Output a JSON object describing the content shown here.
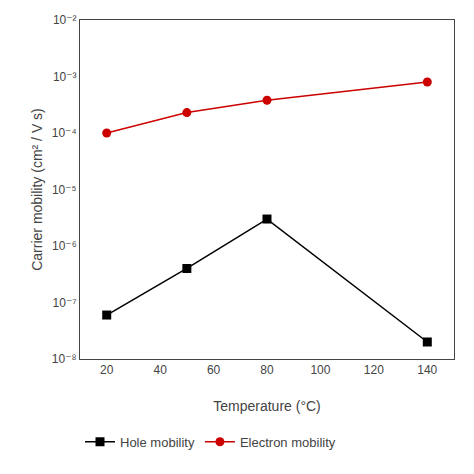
{
  "chart_data": {
    "type": "line",
    "xlabel": "Temperature (°C)",
    "ylabel": "Carrier mobility (cm² / V s)",
    "x": [
      20,
      50,
      80,
      140
    ],
    "series": [
      {
        "name": "Hole mobility",
        "color": "#000000",
        "marker": "square",
        "values": [
          6e-08,
          4e-07,
          3e-06,
          2e-08
        ]
      },
      {
        "name": "Electron mobility",
        "color": "#cc0000",
        "marker": "circle",
        "values": [
          0.0001,
          0.00023,
          0.00038,
          0.0008
        ]
      }
    ],
    "xlim": [
      10,
      150
    ],
    "xticks": [
      20,
      40,
      60,
      80,
      100,
      120,
      140
    ],
    "ylim": [
      1e-08,
      0.01
    ],
    "yticks": [
      {
        "value": 1e-08,
        "label": "10⁻⁸"
      },
      {
        "value": 1e-07,
        "label": "10⁻⁷"
      },
      {
        "value": 1e-06,
        "label": "10⁻⁶"
      },
      {
        "value": 1e-05,
        "label": "10⁻⁵"
      },
      {
        "value": 0.0001,
        "label": "10⁻⁴"
      },
      {
        "value": 0.001,
        "label": "10⁻³"
      },
      {
        "value": 0.01,
        "label": "10⁻²"
      }
    ],
    "log": "y",
    "grid": false,
    "legend": "bottom"
  }
}
